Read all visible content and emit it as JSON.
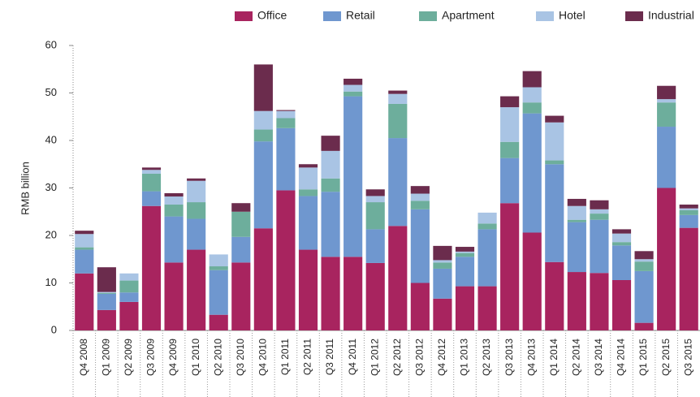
{
  "chart_data": {
    "type": "stacked_bar",
    "y_label": "RMB billion",
    "categories": [
      "Q4 2008",
      "Q1 2009",
      "Q2 2009",
      "Q3 2009",
      "Q4 2009",
      "Q1 2010",
      "Q2 2010",
      "Q3 2010",
      "Q4 2010",
      "Q1 2011",
      "Q2 2011",
      "Q3 2011",
      "Q4 2011",
      "Q1 2012",
      "Q2 2012",
      "Q3 2012",
      "Q4 2012",
      "Q1 2013",
      "Q2 2013",
      "Q3 2013",
      "Q4 2013",
      "Q1 2014",
      "Q2 2014",
      "Q3 2014",
      "Q4 2014",
      "Q1 2015",
      "Q2 2015",
      "Q3 2015"
    ],
    "series": [
      {
        "name": "Office",
        "color": "#a8245f",
        "values": [
          12,
          4.3,
          6,
          26.2,
          14.3,
          17,
          3.3,
          14.3,
          21.5,
          29.5,
          17,
          15.5,
          15.5,
          14.2,
          22,
          10,
          6.7,
          9.3,
          9.3,
          26.8,
          20.6,
          14.4,
          12.3,
          12.1,
          10.6,
          1.6,
          30,
          21.6
        ]
      },
      {
        "name": "Retail",
        "color": "#6f97cf",
        "values": [
          5,
          3.4,
          2,
          3.1,
          9.7,
          6.5,
          9.4,
          5.4,
          18.3,
          13.1,
          11.3,
          13.7,
          33.8,
          7.1,
          18.5,
          15.5,
          6.3,
          6.2,
          12,
          9.5,
          25.1,
          20.6,
          10.5,
          11.2,
          7.3,
          10.9,
          12.9,
          2.7
        ]
      },
      {
        "name": "Apartment",
        "color": "#6dae9c",
        "values": [
          0.5,
          0.2,
          2.5,
          3.7,
          2.5,
          3.5,
          0.8,
          5.3,
          2.5,
          2.1,
          1.4,
          2.8,
          1,
          5.7,
          7.2,
          1.8,
          1.3,
          0.8,
          1.2,
          3.4,
          2.3,
          0.8,
          0.5,
          1.3,
          0.7,
          2,
          5.1,
          1
        ]
      },
      {
        "name": "Hotel",
        "color": "#a9c4e4",
        "values": [
          2.8,
          0.2,
          1.5,
          0.8,
          1.7,
          4.5,
          2.5,
          0,
          3.9,
          1.5,
          4.6,
          5.8,
          1.4,
          1.3,
          2.1,
          1.5,
          0.5,
          0.3,
          2.3,
          7.3,
          3.2,
          8,
          2.9,
          0.9,
          1.8,
          0.5,
          0.7,
          0.4
        ]
      },
      {
        "name": "Industrial",
        "color": "#6b2c4d",
        "values": [
          0.7,
          5.2,
          0,
          0.5,
          0.7,
          0.5,
          0,
          1.8,
          9.8,
          0.2,
          0.7,
          3.2,
          1.3,
          1.4,
          0.7,
          1.6,
          3,
          1,
          0,
          2.3,
          3.4,
          1.4,
          1.5,
          1.9,
          0.9,
          1.7,
          2.8,
          0.8
        ]
      }
    ],
    "ylim": [
      0,
      60
    ],
    "yticks": [
      0,
      10,
      20,
      30,
      40,
      50,
      60
    ],
    "grid": false,
    "legend": "top-right"
  }
}
